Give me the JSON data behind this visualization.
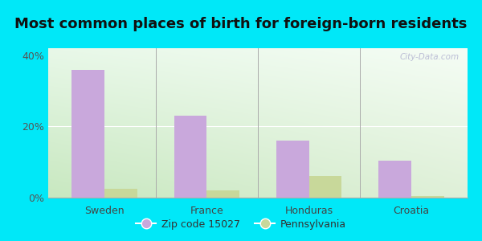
{
  "title": "Most common places of birth for foreign-born residents",
  "categories": [
    "Sweden",
    "France",
    "Honduras",
    "Croatia"
  ],
  "zip_values": [
    36.0,
    23.0,
    16.0,
    10.5
  ],
  "pa_values": [
    2.5,
    2.0,
    6.0,
    0.5
  ],
  "zip_color": "#c9a8dc",
  "pa_color": "#c8d89a",
  "background_outer": "#00e8f8",
  "ylim": [
    0,
    42
  ],
  "yticks": [
    0,
    20,
    40
  ],
  "ytick_labels": [
    "0%",
    "20%",
    "40%"
  ],
  "bar_width": 0.32,
  "legend_zip_label": "Zip code 15027",
  "legend_pa_label": "Pennsylvania",
  "title_fontsize": 13,
  "watermark_text": "City-Data.com"
}
